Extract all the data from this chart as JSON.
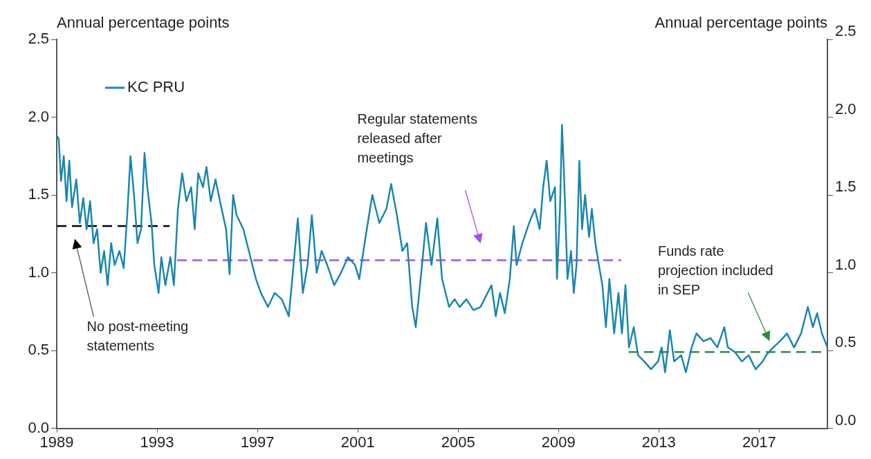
{
  "chart_data": {
    "type": "line",
    "ylabel": "Annual percentage points",
    "y2label": "Annual percentage points",
    "xlim": [
      1989,
      2019.72
    ],
    "xticks": [
      1989,
      1993,
      1997,
      2001,
      2005,
      2009,
      2013,
      2017
    ],
    "ylim": [
      0,
      2.5
    ],
    "yticks": [
      {
        "value": 0,
        "label": "0.0"
      },
      {
        "value": 0.5,
        "label": "0.5"
      },
      {
        "value": 1,
        "label": "1.0"
      },
      {
        "value": 1.5,
        "label": "1.5"
      },
      {
        "value": 2,
        "label": "2.0"
      },
      {
        "value": 2.5,
        "label": "2.5"
      }
    ],
    "y2lim": [
      0,
      2.5
    ],
    "y2ticks": [
      {
        "value": 0,
        "label": "0.0"
      },
      {
        "value": 0.5,
        "label": "0.5"
      },
      {
        "value": 1,
        "label": "1.0"
      },
      {
        "value": 1.5,
        "label": "1.5"
      },
      {
        "value": 2,
        "label": "2.0"
      },
      {
        "value": 2.5,
        "label": "2.5"
      }
    ],
    "grid": false,
    "legend": "top left",
    "marker": "none",
    "series": [
      {
        "name": "KC PRU",
        "color": "#1a86b0",
        "line_style": "solid",
        "x": [
          1989.0,
          1989.08,
          1989.17,
          1989.28,
          1989.39,
          1989.5,
          1989.61,
          1989.78,
          1989.92,
          1990.06,
          1990.19,
          1990.33,
          1990.47,
          1990.61,
          1990.75,
          1990.89,
          1991.03,
          1991.17,
          1991.31,
          1991.5,
          1991.67,
          1991.81,
          1991.94,
          1992.08,
          1992.22,
          1992.36,
          1992.5,
          1992.61,
          1992.78,
          1992.89,
          1993.06,
          1993.17,
          1993.33,
          1993.53,
          1993.67,
          1993.83,
          1994.0,
          1994.17,
          1994.36,
          1994.5,
          1994.64,
          1994.83,
          1994.97,
          1995.14,
          1995.33,
          1995.56,
          1995.75,
          1995.89,
          1996.03,
          1996.17,
          1996.44,
          1996.72,
          1996.94,
          1997.14,
          1997.42,
          1997.69,
          1997.97,
          1998.25,
          1998.44,
          1998.61,
          1998.81,
          1999.0,
          1999.17,
          1999.36,
          1999.56,
          1999.78,
          2000.06,
          2000.33,
          2000.61,
          2000.89,
          2001.06,
          2001.31,
          2001.58,
          2001.86,
          2002.14,
          2002.33,
          2002.56,
          2002.78,
          2002.97,
          2003.17,
          2003.31,
          2003.53,
          2003.72,
          2003.94,
          2004.17,
          2004.36,
          2004.64,
          2004.86,
          2005.06,
          2005.33,
          2005.61,
          2005.89,
          2006.17,
          2006.33,
          2006.5,
          2006.67,
          2006.86,
          2007.06,
          2007.22,
          2007.33,
          2007.56,
          2007.83,
          2008.06,
          2008.25,
          2008.39,
          2008.53,
          2008.67,
          2008.86,
          2008.94,
          2009.06,
          2009.14,
          2009.22,
          2009.36,
          2009.5,
          2009.61,
          2009.72,
          2009.83,
          2009.94,
          2010.06,
          2010.22,
          2010.33,
          2010.47,
          2010.61,
          2010.75,
          2010.89,
          2011.03,
          2011.22,
          2011.39,
          2011.53,
          2011.67,
          2011.81,
          2012.0,
          2012.17,
          2012.42,
          2012.69,
          2012.97,
          2013.11,
          2013.25,
          2013.44,
          2013.61,
          2013.89,
          2014.08,
          2014.31,
          2014.5,
          2014.78,
          2015.06,
          2015.33,
          2015.61,
          2015.75,
          2016.03,
          2016.31,
          2016.58,
          2016.86,
          2017.14,
          2017.28,
          2017.56,
          2017.83,
          2018.11,
          2018.39,
          2018.67,
          2018.94,
          2019.14,
          2019.31,
          2019.5,
          2019.72
        ],
        "values": [
          1.88,
          1.86,
          1.59,
          1.75,
          1.46,
          1.72,
          1.42,
          1.6,
          1.32,
          1.48,
          1.28,
          1.46,
          1.19,
          1.28,
          1.0,
          1.14,
          0.92,
          1.19,
          1.05,
          1.14,
          1.03,
          1.37,
          1.75,
          1.5,
          1.19,
          1.28,
          1.77,
          1.55,
          1.32,
          1.05,
          0.87,
          1.1,
          0.92,
          1.1,
          0.92,
          1.41,
          1.64,
          1.46,
          1.55,
          1.28,
          1.64,
          1.55,
          1.68,
          1.46,
          1.6,
          1.42,
          1.28,
          0.99,
          1.5,
          1.37,
          1.28,
          1.1,
          0.96,
          0.87,
          0.78,
          0.87,
          0.83,
          0.72,
          1.05,
          1.35,
          0.87,
          1.05,
          1.37,
          1.0,
          1.14,
          1.05,
          0.92,
          1.0,
          1.1,
          1.05,
          0.96,
          1.23,
          1.5,
          1.32,
          1.41,
          1.57,
          1.37,
          1.14,
          1.19,
          0.78,
          0.65,
          1.0,
          1.32,
          1.05,
          1.35,
          0.96,
          0.78,
          0.83,
          0.78,
          0.83,
          0.76,
          0.78,
          0.87,
          0.92,
          0.72,
          0.87,
          0.74,
          0.96,
          1.3,
          1.05,
          1.19,
          1.32,
          1.41,
          1.28,
          1.55,
          1.72,
          1.46,
          1.55,
          0.96,
          1.41,
          1.95,
          1.64,
          0.96,
          1.14,
          0.87,
          1.05,
          1.72,
          1.28,
          1.5,
          1.23,
          1.41,
          1.19,
          1.05,
          0.92,
          0.65,
          0.96,
          0.61,
          0.87,
          0.61,
          0.92,
          0.52,
          0.65,
          0.47,
          0.43,
          0.38,
          0.43,
          0.52,
          0.36,
          0.63,
          0.43,
          0.47,
          0.36,
          0.52,
          0.61,
          0.56,
          0.58,
          0.52,
          0.65,
          0.52,
          0.49,
          0.43,
          0.47,
          0.38,
          0.43,
          0.47,
          0.52,
          0.56,
          0.61,
          0.52,
          0.61,
          0.78,
          0.65,
          0.74,
          0.61,
          0.52
        ]
      },
      {
        "color": "#000000",
        "line_style": "dashed",
        "x": [
          1989,
          1993.5
        ],
        "values": [
          1.3,
          1.3
        ]
      },
      {
        "color": "#a64ff0",
        "line_style": "dashed",
        "x": [
          1993.8,
          2011.5
        ],
        "values": [
          1.08,
          1.08
        ]
      },
      {
        "color": "#2e8b3e",
        "line_style": "dashed",
        "x": [
          2011.8,
          2019.72
        ],
        "values": [
          0.49,
          0.49
        ]
      }
    ],
    "annotations": [
      "No post-meeting\nstatements",
      "Regular statements\nreleased after\nmeetings",
      "Funds rate\nprojection included\nin SEP"
    ]
  }
}
